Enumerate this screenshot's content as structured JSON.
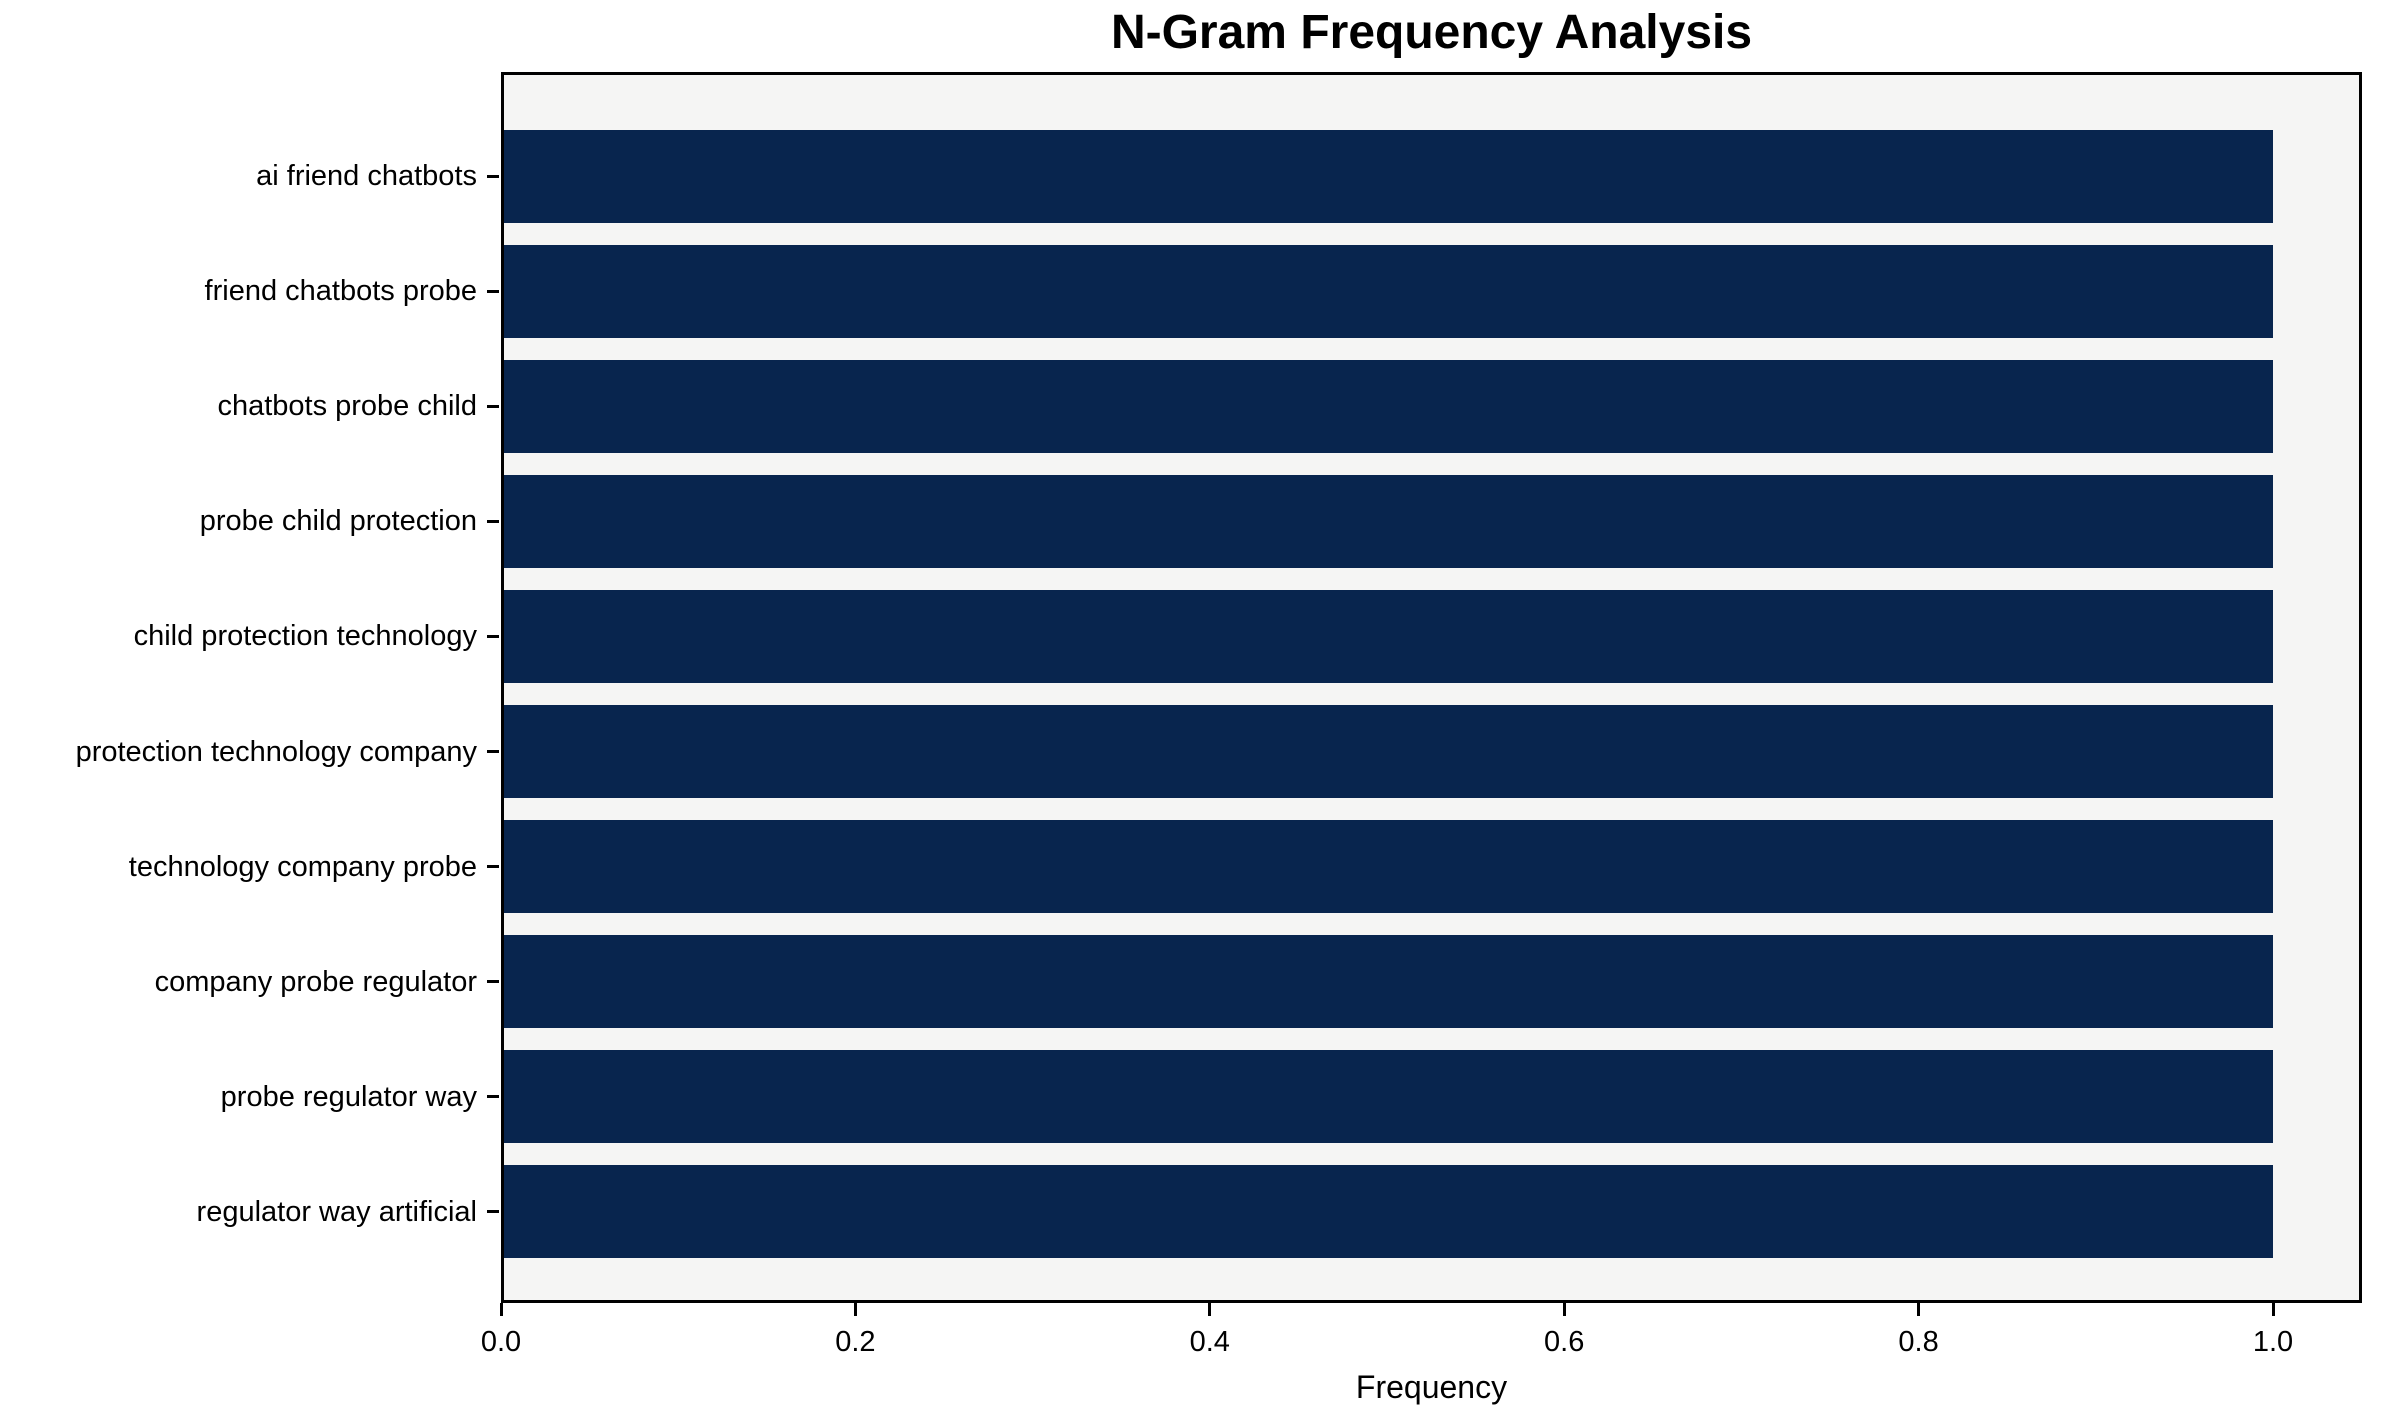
{
  "chart_data": {
    "type": "bar",
    "orientation": "horizontal",
    "title": "N-Gram Frequency Analysis",
    "xlabel": "Frequency",
    "ylabel": "",
    "categories": [
      "ai friend chatbots",
      "friend chatbots probe",
      "chatbots probe child",
      "probe child protection",
      "child protection technology",
      "protection technology company",
      "technology company probe",
      "company probe regulator",
      "probe regulator way",
      "regulator way artificial"
    ],
    "values": [
      1.0,
      1.0,
      1.0,
      1.0,
      1.0,
      1.0,
      1.0,
      1.0,
      1.0,
      1.0
    ],
    "xlim": [
      0.0,
      1.05
    ],
    "xticks": [
      {
        "label": "0.0",
        "value": 0.0
      },
      {
        "label": "0.2",
        "value": 0.2
      },
      {
        "label": "0.4",
        "value": 0.4
      },
      {
        "label": "0.6",
        "value": 0.6
      },
      {
        "label": "0.8",
        "value": 0.8
      },
      {
        "label": "1.0",
        "value": 1.0
      }
    ],
    "grid": false,
    "legend": null,
    "colors": {
      "bar": "#08254e",
      "plot_background": "#f5f5f4",
      "figure_background": "#ffffff",
      "spine": "#000000",
      "text": "#000000"
    }
  }
}
